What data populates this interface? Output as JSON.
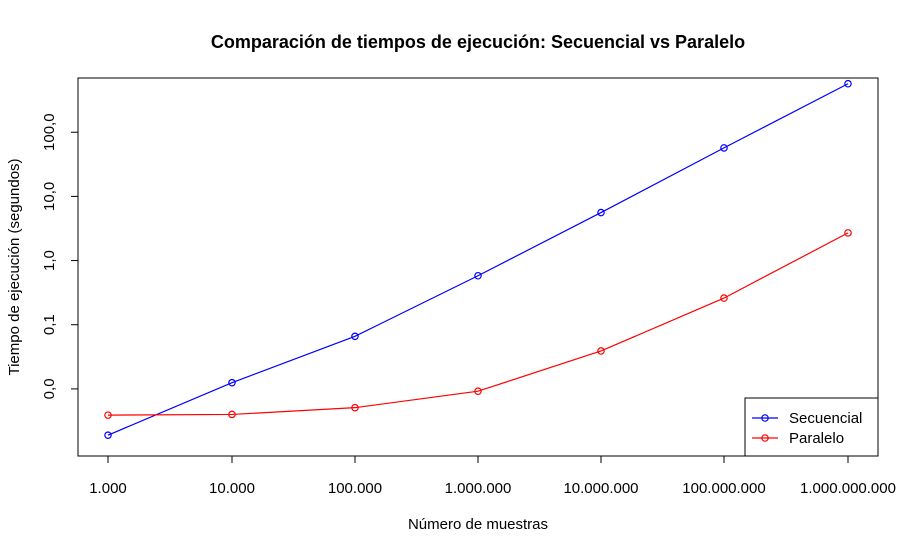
{
  "chart_data": {
    "type": "line",
    "title": "Comparación de tiempos de ejecución: Secuencial vs Paralelo",
    "xlabel": "Número de muestras",
    "ylabel": "Tiempo de ejecución (segundos)",
    "x_scale": "log",
    "y_scale": "log",
    "x": [
      1000,
      10000,
      100000,
      1000000,
      10000000,
      100000000,
      1000000000
    ],
    "x_tick_labels": [
      "1.000",
      "10.000",
      "100.000",
      "1.000.000",
      "10.000.000",
      "100.000.000",
      "1.000.000.000"
    ],
    "y_ticks": [
      0.01,
      0.1,
      1,
      10,
      100
    ],
    "y_tick_labels": [
      "0,0",
      "0,1",
      "1,0",
      "10,0",
      "100,0"
    ],
    "ylim": [
      0.0009,
      700
    ],
    "series": [
      {
        "name": "Secuencial",
        "color": "#0000ff",
        "values": [
          0.0019,
          0.0125,
          0.066,
          0.58,
          5.6,
          57,
          570
        ]
      },
      {
        "name": "Paralelo",
        "color": "#ff0000",
        "values": [
          0.0039,
          0.004,
          0.0051,
          0.0092,
          0.039,
          0.26,
          2.7
        ]
      }
    ],
    "legend_position": "bottom-right",
    "grid": false
  }
}
